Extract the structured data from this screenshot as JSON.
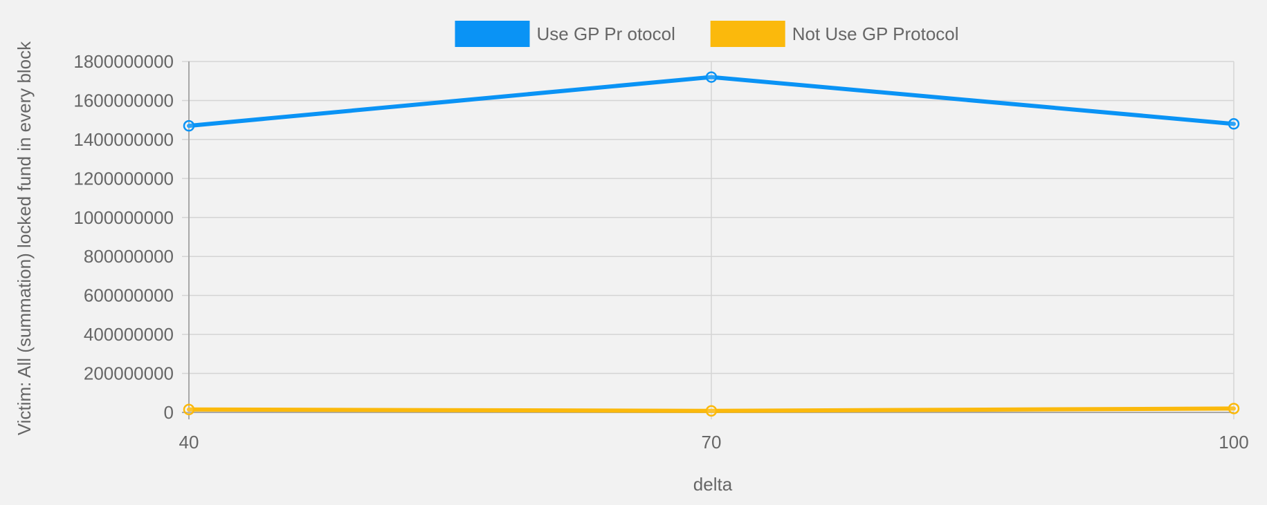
{
  "chart_data": {
    "type": "line",
    "x": [
      40,
      70,
      100
    ],
    "xlabel": "delta",
    "ylabel": "Victim: All (summation) locked fund in every block",
    "ylim": [
      0,
      1800000000
    ],
    "yticks": [
      "0",
      "200000000",
      "400000000",
      "600000000",
      "800000000",
      "1000000000",
      "1200000000",
      "1400000000",
      "1600000000",
      "1800000000"
    ],
    "xticks": [
      "40",
      "70",
      "100"
    ],
    "grid": true,
    "legend_position": "top-center",
    "series": [
      {
        "name": "Use GP Pr otocol",
        "color": "#0a93f5",
        "values": [
          1470000000,
          1720000000,
          1480000000
        ]
      },
      {
        "name": "Not Use GP Protocol",
        "color": "#fbb90c",
        "values": [
          15000000,
          8000000,
          20000000
        ]
      }
    ]
  }
}
